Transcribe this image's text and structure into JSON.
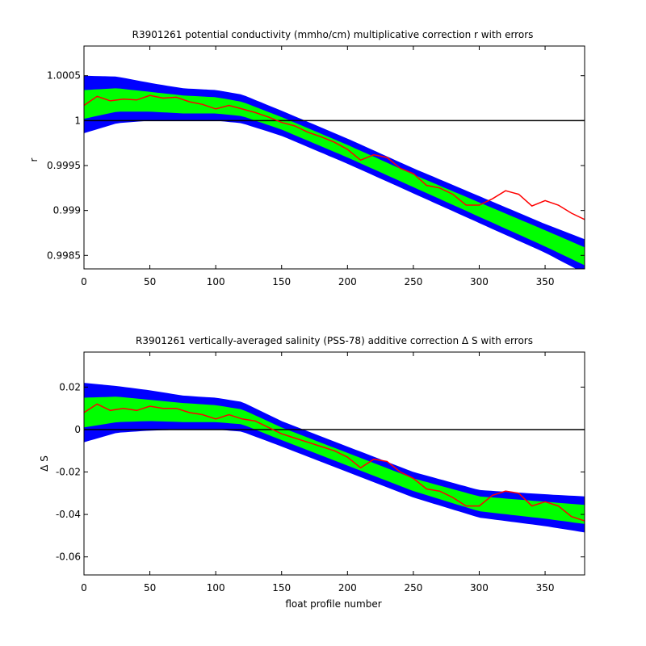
{
  "chart_data": [
    {
      "type": "area",
      "title": "R3901261 potential conductivity (mmho/cm) multiplicative correction r with errors",
      "xlabel": "",
      "ylabel": "r",
      "xlim": [
        0,
        380
      ],
      "ylim": [
        0.99835,
        1.00083
      ],
      "x_ticks": [
        0,
        50,
        100,
        150,
        200,
        250,
        300,
        350
      ],
      "y_ticks": [
        0.9985,
        0.999,
        0.9995,
        1,
        1.0005
      ],
      "y_tick_labels": [
        "0.9985",
        "0.999",
        "0.9995",
        "1",
        "1.0005"
      ],
      "reference_line": 1,
      "grid": false,
      "colors": {
        "outer_band": "#0000ff",
        "inner_band": "#00ff00",
        "series": "#ff0000",
        "reference": "#000000"
      },
      "bands": {
        "x": [
          0,
          25,
          50,
          75,
          100,
          120,
          150,
          200,
          250,
          300,
          350,
          380
        ],
        "center": [
          1.00018,
          1.00023,
          1.00021,
          1.00018,
          1.00017,
          1.00013,
          0.99997,
          0.99966,
          0.99933,
          0.99901,
          0.99869,
          0.99849
        ],
        "inner_half": [
          0.00016,
          0.00013,
          0.00011,
          0.0001,
          9e-05,
          8e-05,
          7e-05,
          7e-05,
          7e-05,
          8e-05,
          9e-05,
          0.0001
        ],
        "outer_half": [
          0.00032,
          0.00026,
          0.00021,
          0.00018,
          0.00017,
          0.00016,
          0.00014,
          0.00014,
          0.00014,
          0.00015,
          0.00016,
          0.00019
        ]
      },
      "series": [
        {
          "x": [
            0,
            10,
            20,
            30,
            40,
            50,
            60,
            70,
            80,
            90,
            100,
            110,
            120,
            130,
            140,
            150,
            160,
            170,
            180,
            190,
            200,
            210,
            220,
            230,
            240,
            250,
            260,
            270,
            280,
            290,
            300,
            310,
            320,
            330,
            340,
            350,
            360,
            370,
            380
          ],
          "values": [
            1.00017,
            1.00027,
            1.00022,
            1.00024,
            1.00023,
            1.00028,
            1.00025,
            1.00026,
            1.00021,
            1.00018,
            1.00013,
            1.00017,
            1.00013,
            1.00009,
            1.00004,
            0.99998,
            0.99994,
            0.99987,
            0.99982,
            0.99976,
            0.99968,
            0.99956,
            0.99962,
            0.99959,
            0.99947,
            0.99941,
            0.99928,
            0.99925,
            0.99918,
            0.99906,
            0.99906,
            0.99913,
            0.99922,
            0.99918,
            0.99905,
            0.99911,
            0.99906,
            0.99897,
            0.9989
          ]
        }
      ]
    },
    {
      "type": "area",
      "title": "R3901261 vertically-averaged salinity (PSS-78) additive correction Δ S with errors",
      "xlabel": "float profile number",
      "ylabel": "Δ S",
      "xlim": [
        0,
        380
      ],
      "ylim": [
        -0.0685,
        0.0365
      ],
      "x_ticks": [
        0,
        50,
        100,
        150,
        200,
        250,
        300,
        350
      ],
      "y_ticks": [
        -0.06,
        -0.04,
        -0.02,
        0,
        0.02
      ],
      "y_tick_labels": [
        "-0.06",
        "-0.04",
        "-0.02",
        "0",
        "0.02"
      ],
      "reference_line": 0,
      "grid": false,
      "colors": {
        "outer_band": "#0000ff",
        "inner_band": "#00ff00",
        "series": "#ff0000",
        "reference": "#000000"
      },
      "bands": {
        "x": [
          0,
          25,
          50,
          75,
          100,
          120,
          150,
          200,
          250,
          300,
          350,
          380
        ],
        "center": [
          0.008,
          0.0095,
          0.009,
          0.008,
          0.0075,
          0.006,
          -0.002,
          -0.014,
          -0.026,
          -0.035,
          -0.038,
          -0.04
        ],
        "inner_half": [
          0.007,
          0.006,
          0.005,
          0.0045,
          0.004,
          0.0035,
          0.003,
          0.003,
          0.003,
          0.0035,
          0.004,
          0.0045
        ],
        "outer_half": [
          0.014,
          0.011,
          0.0095,
          0.008,
          0.0075,
          0.007,
          0.006,
          0.006,
          0.006,
          0.0065,
          0.0075,
          0.0085
        ]
      },
      "series": [
        {
          "x": [
            0,
            10,
            20,
            30,
            40,
            50,
            60,
            70,
            80,
            90,
            100,
            110,
            120,
            130,
            140,
            150,
            160,
            170,
            180,
            190,
            200,
            210,
            220,
            230,
            240,
            250,
            260,
            270,
            280,
            290,
            300,
            310,
            320,
            330,
            340,
            350,
            360,
            370,
            380
          ],
          "values": [
            0.008,
            0.012,
            0.009,
            0.01,
            0.009,
            0.011,
            0.01,
            0.01,
            0.008,
            0.007,
            0.005,
            0.007,
            0.005,
            0.004,
            0.001,
            -0.002,
            -0.004,
            -0.006,
            -0.008,
            -0.01,
            -0.013,
            -0.018,
            -0.014,
            -0.015,
            -0.02,
            -0.023,
            -0.028,
            -0.029,
            -0.032,
            -0.036,
            -0.036,
            -0.031,
            -0.029,
            -0.03,
            -0.036,
            -0.034,
            -0.036,
            -0.041,
            -0.043
          ]
        }
      ]
    }
  ]
}
